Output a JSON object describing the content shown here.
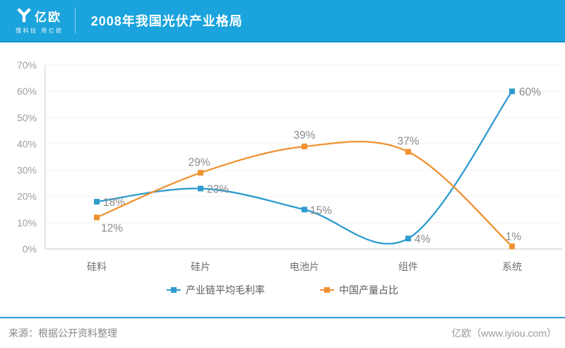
{
  "header": {
    "logo_text": "亿欧",
    "logo_tagline": "懂科技 用亿欧",
    "title": "2008年我国光伏产业格局"
  },
  "chart_data": {
    "type": "line",
    "title": "2008年我国光伏产业格局",
    "smooth": true,
    "marker": "square",
    "categories": [
      "硅料",
      "硅片",
      "电池片",
      "组件",
      "系统"
    ],
    "series": [
      {
        "name": "产业链平均毛利率",
        "color": "#2f9cd0",
        "values": [
          18,
          23,
          15,
          4,
          60
        ],
        "labels": [
          "18%",
          "23%",
          "15%",
          "4%",
          "60%"
        ]
      },
      {
        "name": "中国产量占比",
        "color": "#f0922f",
        "values": [
          12,
          29,
          39,
          37,
          1
        ],
        "labels": [
          "12%",
          "29%",
          "39%",
          "37%",
          "1%"
        ]
      }
    ],
    "ylim": [
      0,
      70
    ],
    "y_ticks": [
      "0%",
      "10%",
      "20%",
      "30%",
      "40%",
      "50%",
      "60%",
      "70%"
    ],
    "xlabel": "",
    "ylabel": "",
    "grid": "horizontal-faint",
    "legend_position": "bottom"
  },
  "footer": {
    "source": "来源：根据公开资料整理",
    "brand": "亿欧（www.iyiou.com）"
  },
  "colors": {
    "header_bg": "#1aa3dc",
    "axis": "#d9d9d9",
    "gridline": "#f2f2f2",
    "tick_text": "#9e9e9e",
    "data_label_text": "#8a8a8a",
    "footer_divider": "#2e9cd4"
  }
}
